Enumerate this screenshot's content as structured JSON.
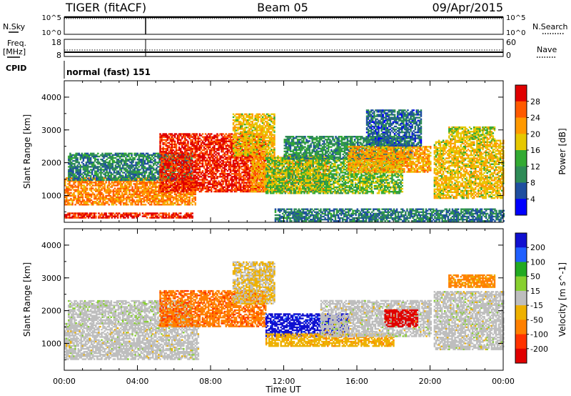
{
  "header": {
    "radar": "TIGER (fitACF)",
    "beam": "Beam 05",
    "date": "09/Apr/2015"
  },
  "params": {
    "nsky_label": "N.Sky",
    "nsky_ticks": [
      "10^5",
      "10^0"
    ],
    "nsearch_label": "N.Search",
    "nsearch_ticks": [
      "10^5",
      "10^0"
    ],
    "freq_label": "Freq.",
    "freq_unit": "[MHz]",
    "freq_ticks": [
      "18",
      "8"
    ],
    "nave_label": "Nave",
    "nave_ticks": [
      "60",
      "0"
    ],
    "cpid_label": "CPID",
    "cpid_value": "normal (fast) 151"
  },
  "colors": {
    "power": [
      "#0000ff",
      "#1f4fa0",
      "#2e8b57",
      "#33aa33",
      "#e6c800",
      "#ff9900",
      "#ff5a00",
      "#e00000"
    ],
    "velocity": [
      "#1010d0",
      "#2060ff",
      "#22aa22",
      "#88d030",
      "#bebebe",
      "#eeb100",
      "#ff8000",
      "#ff3300",
      "#e00000"
    ]
  },
  "chart_data": [
    {
      "type": "heatmap",
      "parameter": "Power",
      "xlabel": "",
      "ylabel": "Slant Range [km]",
      "xlim": [
        "00:00",
        "24:00"
      ],
      "ylim": [
        180,
        4500
      ],
      "yticks": [
        "4000",
        "3000",
        "2000",
        "1000"
      ],
      "colorbar_label": "Power [dB]",
      "colorbar_ticks": [
        "28",
        "24",
        "20",
        "16",
        "12",
        "8",
        "4"
      ],
      "colorbar_range": [
        0,
        30
      ],
      "bands": [
        {
          "start": 0.0,
          "end": 7.0,
          "r0": 300,
          "r1": 450,
          "value": 27
        },
        {
          "start": 0.0,
          "end": 7.2,
          "r0": 700,
          "r1": 1550,
          "value": 22
        },
        {
          "start": 0.2,
          "end": 7.0,
          "r0": 1450,
          "r1": 2300,
          "value": 9
        },
        {
          "start": 5.2,
          "end": 11.0,
          "r0": 1100,
          "r1": 2900,
          "value": 27
        },
        {
          "start": 9.2,
          "end": 11.5,
          "r0": 2200,
          "r1": 3500,
          "value": 18
        },
        {
          "start": 10.2,
          "end": 14.5,
          "r0": 1100,
          "r1": 2200,
          "value": 20
        },
        {
          "start": 11.0,
          "end": 18.5,
          "r0": 1050,
          "r1": 2150,
          "value": 14
        },
        {
          "start": 12.0,
          "end": 19.0,
          "r0": 2100,
          "r1": 2800,
          "value": 10
        },
        {
          "start": 15.5,
          "end": 20.0,
          "r0": 1700,
          "r1": 2500,
          "value": 20
        },
        {
          "start": 16.5,
          "end": 19.5,
          "r0": 2500,
          "r1": 3600,
          "value": 7
        },
        {
          "start": 20.2,
          "end": 24.0,
          "r0": 900,
          "r1": 2700,
          "value": 18
        },
        {
          "start": 21.0,
          "end": 23.5,
          "r0": 2700,
          "r1": 3100,
          "value": 16
        },
        {
          "start": 11.5,
          "end": 24.0,
          "r0": 200,
          "r1": 600,
          "value": 8
        }
      ]
    },
    {
      "type": "heatmap",
      "parameter": "Velocity",
      "xlabel": "Time UT",
      "ylabel": "Slant Range [km]",
      "xlim": [
        "00:00",
        "24:00"
      ],
      "xticks": [
        "00:00",
        "04:00",
        "08:00",
        "12:00",
        "16:00",
        "20:00",
        "00:00"
      ],
      "ylim": [
        180,
        4500
      ],
      "yticks": [
        "4000",
        "3000",
        "2000",
        "1000"
      ],
      "colorbar_label": "Velocity [m s^-1]",
      "colorbar_ticks": [
        "200",
        "100",
        "50",
        "15",
        "-15",
        "-50",
        "-100",
        "-200"
      ],
      "colorbar_range": [
        -250,
        250
      ],
      "bands": [
        {
          "start": 0.0,
          "end": 7.3,
          "r0": 500,
          "r1": 1600,
          "value": 0
        },
        {
          "start": 0.2,
          "end": 7.0,
          "r0": 1600,
          "r1": 2300,
          "value": 5
        },
        {
          "start": 5.2,
          "end": 11.0,
          "r0": 1500,
          "r1": 2600,
          "value": -120
        },
        {
          "start": 9.2,
          "end": 11.5,
          "r0": 2200,
          "r1": 3500,
          "value": -30
        },
        {
          "start": 11.0,
          "end": 15.5,
          "r0": 1200,
          "r1": 1900,
          "value": 220
        },
        {
          "start": 11.0,
          "end": 18.0,
          "r0": 900,
          "r1": 1300,
          "value": -60
        },
        {
          "start": 14.0,
          "end": 20.0,
          "r0": 1200,
          "r1": 2300,
          "value": 0
        },
        {
          "start": 17.5,
          "end": 19.3,
          "r0": 1500,
          "r1": 2000,
          "value": -220
        },
        {
          "start": 20.2,
          "end": 24.0,
          "r0": 800,
          "r1": 2600,
          "value": 0
        },
        {
          "start": 21.0,
          "end": 23.5,
          "r0": 2700,
          "r1": 3100,
          "value": -100
        }
      ]
    }
  ]
}
